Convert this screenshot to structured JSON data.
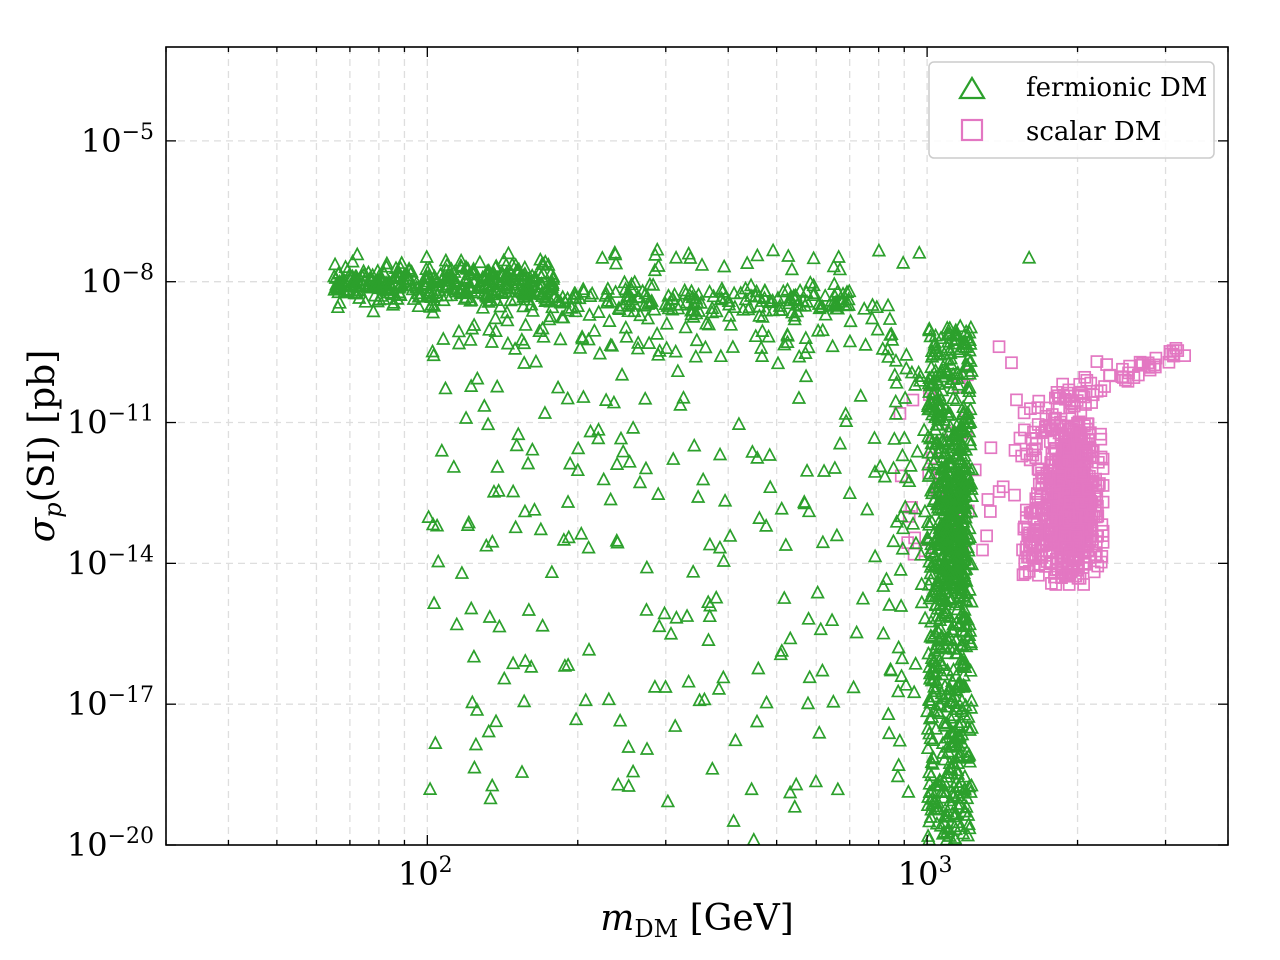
{
  "chart_data": {
    "type": "scatter",
    "x_scale": "log",
    "y_scale": "log",
    "xlim": [
      30,
      4000
    ],
    "ylim": [
      1e-20,
      0.001
    ],
    "xlabel_main": "m",
    "xlabel_sub": "DM",
    "xlabel_unit": " [GeV]",
    "ylabel_sym": "σ",
    "ylabel_sub": "p",
    "ylabel_rest": "(SI) [pb]",
    "x_ticks": [
      {
        "value": 100,
        "base": "10",
        "exp": "2"
      },
      {
        "value": 1000,
        "base": "10",
        "exp": "3"
      }
    ],
    "y_ticks": [
      {
        "value": 1e-05,
        "base": "10",
        "exp": "−5"
      },
      {
        "value": 1e-08,
        "base": "10",
        "exp": "−8"
      },
      {
        "value": 1e-11,
        "base": "10",
        "exp": "−11"
      },
      {
        "value": 1e-14,
        "base": "10",
        "exp": "−14"
      },
      {
        "value": 1e-17,
        "base": "10",
        "exp": "−17"
      },
      {
        "value": 1e-20,
        "base": "10",
        "exp": "−20"
      }
    ],
    "grid": true,
    "legend_position": "top-right",
    "series": [
      {
        "name": "fermionic DM",
        "marker": "triangle",
        "color": "#2ca02c",
        "x_range": [
          65,
          1250
        ],
        "log10_y_range": [
          -20,
          -7.5
        ],
        "approx_points": 2000
      },
      {
        "name": "scalar DM",
        "marker": "square",
        "color": "#e377c2",
        "x_range": [
          900,
          3300
        ],
        "log10_y_range": [
          -14.5,
          -9.1
        ],
        "approx_points": 900
      }
    ]
  },
  "legend": {
    "items": [
      {
        "label": "fermionic DM",
        "marker": "triangle",
        "color": "#2ca02c"
      },
      {
        "label": "scalar DM",
        "marker": "square",
        "color": "#e377c2"
      }
    ]
  }
}
